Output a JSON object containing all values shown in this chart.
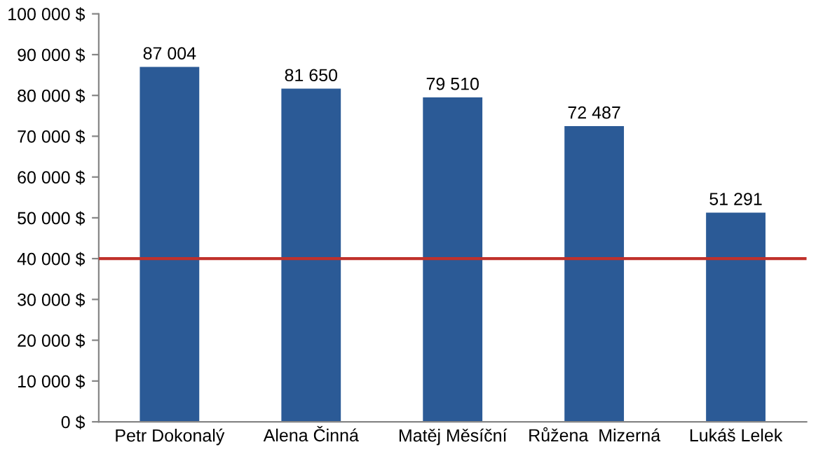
{
  "chart_data": {
    "type": "bar",
    "categories": [
      "Petr Dokonalý",
      "Alena Činná",
      "Matěj Měsíční",
      "Růžena  Mizerná",
      "Lukáš Lelek"
    ],
    "values": [
      87004,
      81650,
      79510,
      72487,
      51291
    ],
    "value_labels": [
      "87 004",
      "81 650",
      "79 510",
      "72 487",
      "51 291"
    ],
    "color": "#2b5a96",
    "ylim": [
      0,
      100000
    ],
    "yticks": [
      {
        "value": 0,
        "label": "0 $"
      },
      {
        "value": 10000,
        "label": "10 000 $"
      },
      {
        "value": 20000,
        "label": "20 000 $"
      },
      {
        "value": 30000,
        "label": "30 000 $"
      },
      {
        "value": 40000,
        "label": "40 000 $"
      },
      {
        "value": 50000,
        "label": "50 000 $"
      },
      {
        "value": 60000,
        "label": "60 000 $"
      },
      {
        "value": 70000,
        "label": "70 000 $"
      },
      {
        "value": 80000,
        "label": "80 000 $"
      },
      {
        "value": 90000,
        "label": "90 000 $"
      },
      {
        "value": 100000,
        "label": "100 000 $"
      }
    ],
    "ref_lines": [
      {
        "axis": "y",
        "value": 40000,
        "color": "#c0312b",
        "line_style": "solid"
      }
    ],
    "grid": false,
    "legend": false
  }
}
